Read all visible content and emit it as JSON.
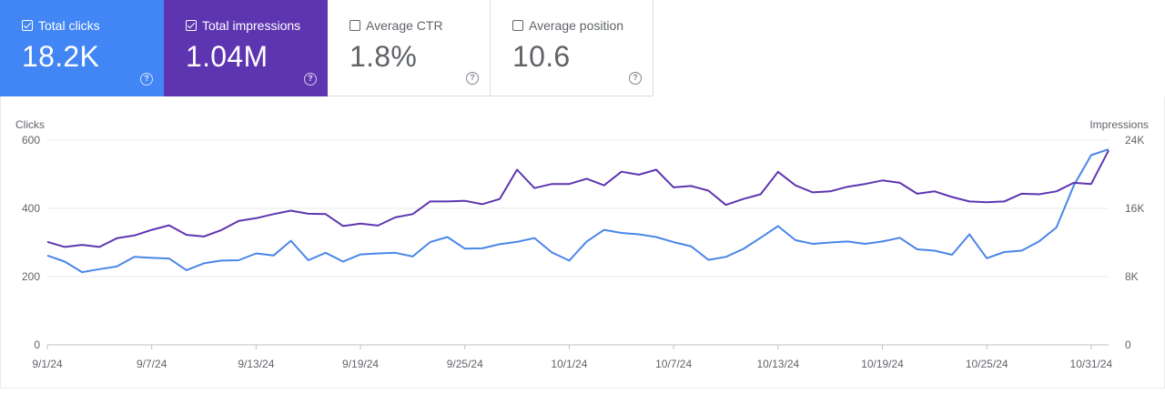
{
  "metrics": [
    {
      "label": "Total clicks",
      "value": "18.2K",
      "checked": true,
      "color": "#4285f4"
    },
    {
      "label": "Total impressions",
      "value": "1.04M",
      "checked": true,
      "color": "#5e35b1"
    },
    {
      "label": "Average CTR",
      "value": "1.8%",
      "checked": false
    },
    {
      "label": "Average position",
      "value": "10.6",
      "checked": false
    }
  ],
  "chart_data": {
    "type": "line",
    "left_axis_label": "Clicks",
    "right_axis_label": "Impressions",
    "left_ylim": [
      0,
      600
    ],
    "right_ylim": [
      0,
      24000
    ],
    "left_ticks": [
      "0",
      "200",
      "400",
      "600"
    ],
    "right_ticks": [
      "0",
      "8K",
      "16K",
      "24K"
    ],
    "x_tick_labels": [
      "9/1/24",
      "9/7/24",
      "9/13/24",
      "9/19/24",
      "9/25/24",
      "10/1/24",
      "10/7/24",
      "10/13/24",
      "10/19/24",
      "10/25/24",
      "10/31/24"
    ],
    "x": [
      "9/1/24",
      "9/2/24",
      "9/3/24",
      "9/4/24",
      "9/5/24",
      "9/6/24",
      "9/7/24",
      "9/8/24",
      "9/9/24",
      "9/10/24",
      "9/11/24",
      "9/12/24",
      "9/13/24",
      "9/14/24",
      "9/15/24",
      "9/16/24",
      "9/17/24",
      "9/18/24",
      "9/19/24",
      "9/20/24",
      "9/21/24",
      "9/22/24",
      "9/23/24",
      "9/24/24",
      "9/25/24",
      "9/26/24",
      "9/27/24",
      "9/28/24",
      "9/29/24",
      "9/30/24",
      "10/1/24",
      "10/2/24",
      "10/3/24",
      "10/4/24",
      "10/5/24",
      "10/6/24",
      "10/7/24",
      "10/8/24",
      "10/9/24",
      "10/10/24",
      "10/11/24",
      "10/12/24",
      "10/13/24",
      "10/14/24",
      "10/15/24",
      "10/16/24",
      "10/17/24",
      "10/18/24",
      "10/19/24",
      "10/20/24",
      "10/21/24",
      "10/22/24",
      "10/23/24",
      "10/24/24",
      "10/25/24",
      "10/26/24",
      "10/27/24",
      "10/28/24",
      "10/29/24",
      "10/30/24",
      "10/31/24",
      "11/1/24"
    ],
    "grid": true,
    "series": [
      {
        "name": "Clicks",
        "axis": "left",
        "color": "#4a86e8",
        "values": [
          262,
          244,
          213,
          222,
          230,
          258,
          255,
          253,
          219,
          239,
          247,
          248,
          268,
          262,
          305,
          248,
          270,
          244,
          265,
          268,
          270,
          259,
          301,
          316,
          282,
          283,
          295,
          302,
          313,
          271,
          247,
          303,
          337,
          328,
          324,
          316,
          301,
          289,
          249,
          258,
          281,
          314,
          348,
          307,
          296,
          300,
          303,
          296,
          303,
          314,
          280,
          276,
          264,
          324,
          254,
          272,
          276,
          303,
          344,
          467,
          556,
          573
        ]
      },
      {
        "name": "Impressions",
        "axis": "right",
        "color": "#5e35b1",
        "values": [
          12080,
          11480,
          11720,
          11480,
          12500,
          12820,
          13480,
          14020,
          12900,
          12700,
          13450,
          14540,
          14850,
          15330,
          15730,
          15370,
          15330,
          13930,
          14210,
          13980,
          14940,
          15330,
          16810,
          16810,
          16890,
          16490,
          17100,
          20530,
          18380,
          18860,
          18860,
          19480,
          18700,
          20300,
          19950,
          20530,
          18460,
          18620,
          18080,
          16410,
          17100,
          17650,
          20290,
          18700,
          17880,
          18000,
          18540,
          18860,
          19270,
          19000,
          17720,
          18000,
          17330,
          16810,
          16730,
          16810,
          17720,
          17650,
          18000,
          19000,
          18860,
          22800
        ]
      }
    ]
  }
}
